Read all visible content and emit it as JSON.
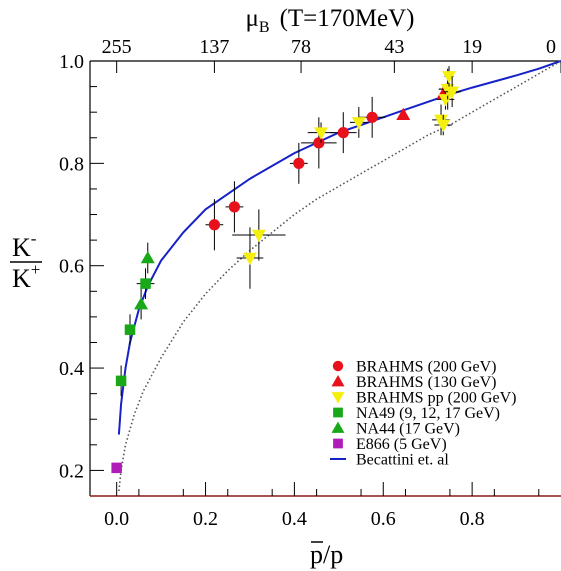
{
  "chart_data": {
    "type": "scatter",
    "xlabel": "p/p",
    "xlabel_bar_char": "p",
    "ylabel_num": "K",
    "ylabel_num_sup": "-",
    "ylabel_den": "K",
    "ylabel_den_sup": "+",
    "top_axis_label_sym": "μ",
    "top_axis_label_sub": "B",
    "top_axis_label_rest": "(T=170MeV)",
    "xlim": [
      -0.06,
      1.0
    ],
    "ylim": [
      0.15,
      1.0
    ],
    "x_ticks": [
      "0.0",
      "0.2",
      "0.4",
      "0.6",
      "0.8"
    ],
    "y_ticks": [
      "0.2",
      "0.4",
      "0.6",
      "0.8",
      "1.0"
    ],
    "top_ticks": [
      {
        "label": "255",
        "x": 0.0
      },
      {
        "label": "137",
        "x": 0.22
      },
      {
        "label": "78",
        "x": 0.415
      },
      {
        "label": "43",
        "x": 0.625
      },
      {
        "label": "19",
        "x": 0.8
      },
      {
        "label": "0",
        "x": 1.0
      }
    ],
    "legend_position": "bottom-right",
    "series": [
      {
        "name": "BRAHMS (200 GeV)",
        "marker": "circle",
        "color": "#e8101a",
        "points": [
          {
            "x": 0.22,
            "y": 0.68,
            "xerr": 0.02,
            "yerr": 0.05
          },
          {
            "x": 0.265,
            "y": 0.715,
            "xerr": 0.02,
            "yerr": 0.05
          },
          {
            "x": 0.41,
            "y": 0.8,
            "xerr": 0.02,
            "yerr": 0.04
          },
          {
            "x": 0.455,
            "y": 0.84,
            "xerr": 0.04,
            "yerr": 0.05
          },
          {
            "x": 0.51,
            "y": 0.86,
            "xerr": 0.03,
            "yerr": 0.04
          },
          {
            "x": 0.575,
            "y": 0.89,
            "xerr": 0.03,
            "yerr": 0.04
          },
          {
            "x": 0.745,
            "y": 0.945,
            "xerr": 0.02,
            "yerr": 0.04
          }
        ]
      },
      {
        "name": "BRAHMS (130 GeV)",
        "marker": "triangle-up",
        "color": "#e8101a",
        "points": [
          {
            "x": 0.645,
            "y": 0.895,
            "xerr": 0.0,
            "yerr": 0.0
          },
          {
            "x": 0.735,
            "y": 0.935,
            "xerr": 0.0,
            "yerr": 0.0
          }
        ]
      },
      {
        "name": "BRAHMS pp (200 GeV)",
        "marker": "triangle-down",
        "color": "#f5ef10",
        "points": [
          {
            "x": 0.3,
            "y": 0.615,
            "xerr": 0.03,
            "yerr": 0.06
          },
          {
            "x": 0.32,
            "y": 0.66,
            "xerr": 0.06,
            "yerr": 0.05
          },
          {
            "x": 0.46,
            "y": 0.86,
            "xerr": 0.03,
            "yerr": 0.02
          },
          {
            "x": 0.545,
            "y": 0.88,
            "xerr": 0.02,
            "yerr": 0.03
          },
          {
            "x": 0.73,
            "y": 0.885,
            "xerr": 0.02,
            "yerr": 0.03
          },
          {
            "x": 0.735,
            "y": 0.875,
            "xerr": 0.02,
            "yerr": 0.02
          },
          {
            "x": 0.74,
            "y": 0.925,
            "xerr": 0.02,
            "yerr": 0.02
          },
          {
            "x": 0.745,
            "y": 0.945,
            "xerr": 0.02,
            "yerr": 0.02
          },
          {
            "x": 0.748,
            "y": 0.97,
            "xerr": 0.01,
            "yerr": 0.02
          },
          {
            "x": 0.755,
            "y": 0.94,
            "xerr": 0.02,
            "yerr": 0.03
          }
        ]
      },
      {
        "name": "NA49 (9, 12, 17 GeV)",
        "marker": "square",
        "color": "#18a818",
        "points": [
          {
            "x": 0.01,
            "y": 0.375,
            "xerr": 0.005,
            "yerr": 0.03
          },
          {
            "x": 0.03,
            "y": 0.475,
            "xerr": 0.01,
            "yerr": 0.03
          },
          {
            "x": 0.065,
            "y": 0.565,
            "xerr": 0.02,
            "yerr": 0.03
          }
        ]
      },
      {
        "name": "NA44 (17 GeV)",
        "marker": "triangle-up",
        "color": "#18a818",
        "points": [
          {
            "x": 0.055,
            "y": 0.525,
            "xerr": 0.005,
            "yerr": 0.03
          },
          {
            "x": 0.07,
            "y": 0.615,
            "xerr": 0.005,
            "yerr": 0.03
          }
        ]
      },
      {
        "name": "E866 (5 GeV)",
        "marker": "square",
        "color": "#b01cb8",
        "points": [
          {
            "x": 0.0,
            "y": 0.205,
            "xerr": 0.0,
            "yerr": 0.0
          }
        ]
      }
    ],
    "curves": [
      {
        "name": "Becattini et. al",
        "style": "solid",
        "color": "#1622c8",
        "x": [
          0.005,
          0.01,
          0.02,
          0.03,
          0.05,
          0.07,
          0.1,
          0.15,
          0.2,
          0.25,
          0.3,
          0.35,
          0.4,
          0.45,
          0.5,
          0.55,
          0.6,
          0.65,
          0.7,
          0.75,
          0.8,
          0.85,
          0.9,
          0.95,
          1.0
        ],
        "y": [
          0.27,
          0.33,
          0.4,
          0.45,
          0.515,
          0.56,
          0.61,
          0.665,
          0.71,
          0.74,
          0.77,
          0.795,
          0.82,
          0.84,
          0.86,
          0.875,
          0.89,
          0.905,
          0.92,
          0.935,
          0.948,
          0.96,
          0.972,
          0.985,
          1.0
        ]
      },
      {
        "name": "",
        "style": "dotted",
        "color": "#555555",
        "x": [
          0.005,
          0.01,
          0.02,
          0.04,
          0.06,
          0.1,
          0.15,
          0.2,
          0.25,
          0.3,
          0.35,
          0.4,
          0.45,
          0.5,
          0.55,
          0.6,
          0.65,
          0.7,
          0.75,
          0.8,
          0.85,
          0.9,
          0.95,
          1.0
        ],
        "y": [
          0.16,
          0.2,
          0.25,
          0.31,
          0.355,
          0.42,
          0.49,
          0.545,
          0.59,
          0.63,
          0.665,
          0.7,
          0.73,
          0.755,
          0.78,
          0.805,
          0.83,
          0.855,
          0.875,
          0.9,
          0.925,
          0.95,
          0.975,
          1.0
        ]
      }
    ]
  }
}
